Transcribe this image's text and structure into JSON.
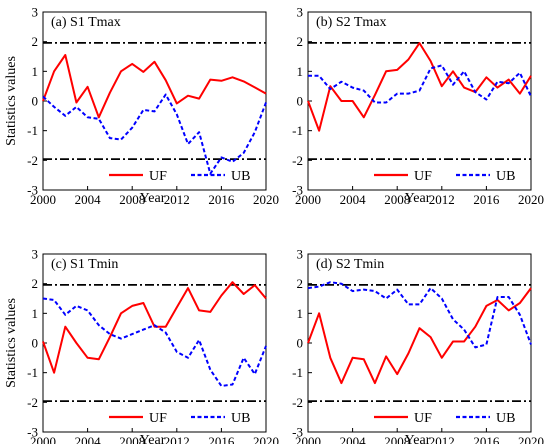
{
  "chart_data": [
    {
      "type": "line",
      "title": "(a) S1 Tmax",
      "xlabel": "Year",
      "ylabel": "Statistics values",
      "xlim": [
        2000,
        2020
      ],
      "ylim": [
        -3,
        3
      ],
      "xticks": [
        "2000",
        "2004",
        "2008",
        "2012",
        "2016",
        "2020"
      ],
      "yticks": [
        "-3",
        "-2",
        "-1",
        "0",
        "1",
        "2",
        "3"
      ],
      "threshold_lines": [
        1.96,
        -1.96
      ],
      "x": [
        2000,
        2001,
        2002,
        2003,
        2004,
        2005,
        2006,
        2007,
        2008,
        2009,
        2010,
        2011,
        2012,
        2013,
        2014,
        2015,
        2016,
        2017,
        2018,
        2019,
        2020
      ],
      "series": [
        {
          "name": "UF",
          "color": "#ff0000",
          "style": "solid",
          "values": [
            0.0,
            1.0,
            1.55,
            -0.05,
            0.48,
            -0.55,
            0.28,
            1.0,
            1.25,
            0.98,
            1.32,
            0.7,
            -0.08,
            0.18,
            0.08,
            0.72,
            0.68,
            0.8,
            0.66,
            0.46,
            0.25
          ]
        },
        {
          "name": "UB",
          "color": "#0000ff",
          "style": "dashed",
          "values": [
            0.15,
            -0.2,
            -0.5,
            -0.2,
            -0.55,
            -0.6,
            -1.25,
            -1.3,
            -0.9,
            -0.3,
            -0.35,
            0.22,
            -0.45,
            -1.45,
            -1.05,
            -2.45,
            -1.9,
            -2.05,
            -1.75,
            -1.05,
            -0.05
          ]
        }
      ],
      "legend": "bottom-right"
    },
    {
      "type": "line",
      "title": "(b) S2 Tmax",
      "xlabel": "Year",
      "ylabel": "",
      "xlim": [
        2000,
        2020
      ],
      "ylim": [
        -3,
        3
      ],
      "xticks": [
        "2000",
        "2004",
        "2008",
        "2012",
        "2016",
        "2020"
      ],
      "yticks": [
        "-3",
        "-2",
        "-1",
        "0",
        "1",
        "2",
        "3"
      ],
      "threshold_lines": [
        1.96,
        -1.96
      ],
      "x": [
        2000,
        2001,
        2002,
        2003,
        2004,
        2005,
        2006,
        2007,
        2008,
        2009,
        2010,
        2011,
        2012,
        2013,
        2014,
        2015,
        2016,
        2017,
        2018,
        2019,
        2020
      ],
      "series": [
        {
          "name": "UF",
          "color": "#ff0000",
          "style": "solid",
          "values": [
            0.0,
            -1.0,
            0.5,
            0.0,
            0.0,
            -0.55,
            0.2,
            1.0,
            1.05,
            1.4,
            1.95,
            1.35,
            0.5,
            1.0,
            0.45,
            0.3,
            0.8,
            0.45,
            0.72,
            0.25,
            0.85
          ]
        },
        {
          "name": "UB",
          "color": "#0000ff",
          "style": "dashed",
          "values": [
            0.85,
            0.85,
            0.4,
            0.65,
            0.45,
            0.35,
            -0.05,
            -0.05,
            0.25,
            0.25,
            0.35,
            1.1,
            1.2,
            0.55,
            1.0,
            0.3,
            0.05,
            0.65,
            0.6,
            0.95,
            0.15
          ]
        }
      ],
      "legend": "bottom-right"
    },
    {
      "type": "line",
      "title": "(c) S1 Tmin",
      "xlabel": "Year",
      "ylabel": "Statistics values",
      "xlim": [
        2000,
        2020
      ],
      "ylim": [
        -3,
        3
      ],
      "xticks": [
        "2000",
        "2004",
        "2008",
        "2012",
        "2016",
        "2020"
      ],
      "yticks": [
        "-3",
        "-2",
        "-1",
        "0",
        "1",
        "2",
        "3"
      ],
      "threshold_lines": [
        1.96,
        -1.96
      ],
      "x": [
        2000,
        2001,
        2002,
        2003,
        2004,
        2005,
        2006,
        2007,
        2008,
        2009,
        2010,
        2011,
        2012,
        2013,
        2014,
        2015,
        2016,
        2017,
        2018,
        2019,
        2020
      ],
      "series": [
        {
          "name": "UF",
          "color": "#ff0000",
          "style": "solid",
          "values": [
            0.05,
            -1.0,
            0.55,
            0.0,
            -0.5,
            -0.55,
            0.2,
            1.0,
            1.25,
            1.35,
            0.55,
            0.55,
            1.2,
            1.85,
            1.1,
            1.05,
            1.6,
            2.05,
            1.65,
            1.95,
            1.5
          ]
        },
        {
          "name": "UB",
          "color": "#0000ff",
          "style": "dashed",
          "values": [
            1.5,
            1.45,
            0.95,
            1.25,
            1.1,
            0.6,
            0.3,
            0.15,
            0.3,
            0.45,
            0.6,
            0.35,
            -0.3,
            -0.5,
            0.1,
            -0.9,
            -1.45,
            -1.4,
            -0.5,
            -1.05,
            -0.1
          ]
        }
      ],
      "legend": "bottom-right"
    },
    {
      "type": "line",
      "title": "(d) S2 Tmin",
      "xlabel": "Year",
      "ylabel": "",
      "xlim": [
        2000,
        2020
      ],
      "ylim": [
        -3,
        3
      ],
      "xticks": [
        "2000",
        "2004",
        "2008",
        "2012",
        "2016",
        "2020"
      ],
      "yticks": [
        "-3",
        "-2",
        "-1",
        "0",
        "1",
        "2",
        "3"
      ],
      "threshold_lines": [
        1.96,
        -1.96
      ],
      "x": [
        2000,
        2001,
        2002,
        2003,
        2004,
        2005,
        2006,
        2007,
        2008,
        2009,
        2010,
        2011,
        2012,
        2013,
        2014,
        2015,
        2016,
        2017,
        2018,
        2019,
        2020
      ],
      "series": [
        {
          "name": "UF",
          "color": "#ff0000",
          "style": "solid",
          "values": [
            0.0,
            1.0,
            -0.5,
            -1.35,
            -0.5,
            -0.55,
            -1.35,
            -0.45,
            -1.05,
            -0.35,
            0.5,
            0.2,
            -0.5,
            0.05,
            0.05,
            0.55,
            1.25,
            1.45,
            1.1,
            1.35,
            1.85
          ]
        },
        {
          "name": "UB",
          "color": "#0000ff",
          "style": "dashed",
          "values": [
            1.85,
            1.9,
            2.05,
            2.0,
            1.75,
            1.8,
            1.75,
            1.5,
            1.8,
            1.3,
            1.3,
            1.85,
            1.5,
            0.8,
            0.45,
            -0.15,
            -0.05,
            1.55,
            1.55,
            0.95,
            -0.05
          ]
        }
      ],
      "legend": "bottom-right"
    }
  ]
}
